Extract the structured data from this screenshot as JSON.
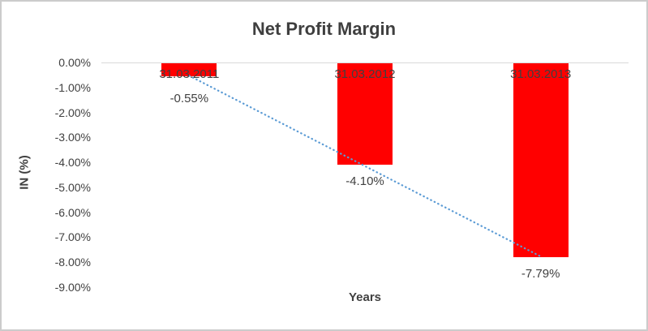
{
  "chart_data": {
    "type": "bar",
    "title": "Net Profit Margin",
    "xlabel": "Years",
    "ylabel": "IN (%)",
    "categories": [
      "31.03.2011",
      "31.03.2012",
      "31.03.2013"
    ],
    "values": [
      -0.55,
      -4.1,
      -7.79
    ],
    "data_labels": [
      "-0.55%",
      "-4.10%",
      "-7.79%"
    ],
    "y_ticks": [
      "0.00%",
      "-1.00%",
      "-2.00%",
      "-3.00%",
      "-4.00%",
      "-5.00%",
      "-6.00%",
      "-7.00%",
      "-8.00%",
      "-9.00%"
    ],
    "ylim": [
      -9,
      0
    ],
    "grid": "none",
    "legend": "none",
    "bar_color": "#FF0000",
    "trendline": {
      "type": "linear",
      "style": "dotted",
      "color": "#5B9BD5",
      "start_value": -0.53,
      "end_value": -7.77
    }
  }
}
